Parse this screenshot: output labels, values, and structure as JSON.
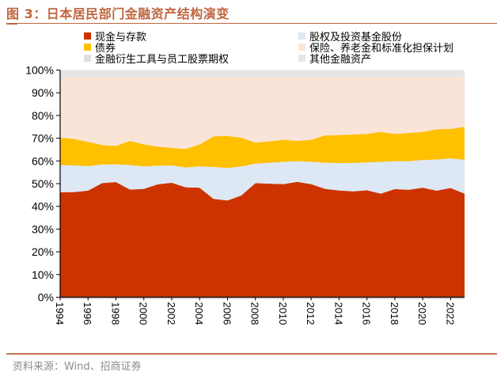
{
  "header": {
    "title": "图 3：日本居民部门金融资产结构演变"
  },
  "footer": {
    "source": "资料来源：Wind、招商证券"
  },
  "chart_data": {
    "type": "area",
    "stacked": true,
    "percent": true,
    "title": "图 3：日本居民部门金融资产结构演变",
    "xlabel": "",
    "ylabel": "",
    "ylim": [
      0,
      100
    ],
    "yticks": [
      "0%",
      "10%",
      "20%",
      "30%",
      "40%",
      "50%",
      "60%",
      "70%",
      "80%",
      "90%",
      "100%"
    ],
    "xticks": [
      "1994",
      "1996",
      "1998",
      "2000",
      "2002",
      "2004",
      "2006",
      "2008",
      "2010",
      "2012",
      "2014",
      "2016",
      "2018",
      "2020",
      "2022"
    ],
    "legend_position": "top",
    "grid": false,
    "x": [
      1994,
      1995,
      1996,
      1997,
      1998,
      1999,
      2000,
      2001,
      2002,
      2003,
      2004,
      2005,
      2006,
      2007,
      2008,
      2009,
      2010,
      2011,
      2012,
      2013,
      2014,
      2015,
      2016,
      2017,
      2018,
      2019,
      2020,
      2021,
      2022,
      2023
    ],
    "series": [
      {
        "name": "现金与存款",
        "color": "#cc3300",
        "values": [
          46.2,
          46.3,
          46.9,
          50.2,
          50.7,
          47.4,
          47.7,
          49.7,
          50.4,
          48.4,
          48.2,
          43.3,
          42.6,
          44.8,
          50.2,
          50.0,
          49.8,
          50.8,
          49.8,
          47.7,
          47.0,
          46.6,
          47.1,
          45.6,
          47.6,
          47.3,
          48.2,
          46.9,
          48.1,
          45.6
        ]
      },
      {
        "name": "股权及投资基金股份",
        "color": "#dde8f4",
        "values": [
          12.0,
          11.7,
          10.8,
          8.2,
          7.8,
          10.8,
          9.9,
          8.2,
          7.6,
          8.7,
          9.4,
          14.0,
          14.3,
          12.8,
          8.6,
          9.2,
          9.8,
          9.1,
          9.8,
          11.5,
          12.0,
          12.5,
          12.2,
          14.0,
          12.3,
          12.6,
          12.2,
          13.7,
          13.0,
          14.9
        ]
      },
      {
        "name": "债券",
        "color": "#ffc000",
        "values": [
          12.0,
          11.7,
          10.7,
          8.6,
          8.1,
          10.6,
          9.7,
          8.4,
          7.7,
          8.2,
          9.6,
          13.5,
          14.1,
          12.6,
          9.3,
          9.4,
          9.7,
          8.9,
          9.7,
          12.0,
          12.4,
          12.5,
          12.6,
          13.2,
          12.0,
          12.4,
          12.4,
          13.3,
          13.0,
          14.5
        ]
      },
      {
        "name": "保险、养老金和标准化担保计划",
        "color": "#fae3d7",
        "values": [
          26.7,
          27.2,
          28.5,
          29.9,
          30.3,
          28.1,
          29.6,
          30.6,
          31.2,
          31.6,
          29.7,
          26.1,
          25.9,
          26.7,
          28.8,
          28.3,
          27.6,
          28.1,
          27.6,
          25.7,
          25.5,
          25.3,
          25.0,
          24.1,
          25.0,
          24.6,
          24.1,
          23.0,
          22.8,
          22.0
        ]
      },
      {
        "name": "金融衍生工具与员工股票期权",
        "color": "#e0e0e0",
        "values": [
          0.1,
          0.1,
          0.1,
          0.1,
          0.1,
          0.1,
          0.1,
          0.1,
          0.1,
          0.1,
          0.1,
          0.1,
          0.1,
          0.1,
          0.1,
          0.1,
          0.1,
          0.1,
          0.1,
          0.1,
          0.1,
          0.1,
          0.1,
          0.1,
          0.1,
          0.1,
          0.1,
          0.1,
          0.1,
          0.1
        ]
      },
      {
        "name": "其他金融资产",
        "color": "#e6e6e6",
        "values": [
          3.0,
          3.0,
          3.0,
          3.0,
          3.0,
          3.0,
          3.0,
          3.0,
          3.0,
          3.0,
          3.0,
          3.0,
          3.0,
          3.0,
          3.0,
          3.0,
          3.0,
          3.0,
          3.0,
          3.0,
          3.0,
          3.0,
          3.0,
          3.0,
          3.0,
          3.0,
          3.0,
          3.0,
          3.0,
          2.9
        ]
      }
    ]
  },
  "legend": {
    "items": [
      {
        "label": "现金与存款",
        "color": "#cc3300"
      },
      {
        "label": "股权及投资基金股份",
        "color": "#dde8f4"
      },
      {
        "label": "债券",
        "color": "#ffc000"
      },
      {
        "label": "保险、养老金和标准化担保计划",
        "color": "#fae3d7"
      },
      {
        "label": "金融衍生工具与员工股票期权",
        "color": "#e0e0e0"
      },
      {
        "label": "其他金融资产",
        "color": "#e6e6e6"
      }
    ]
  }
}
